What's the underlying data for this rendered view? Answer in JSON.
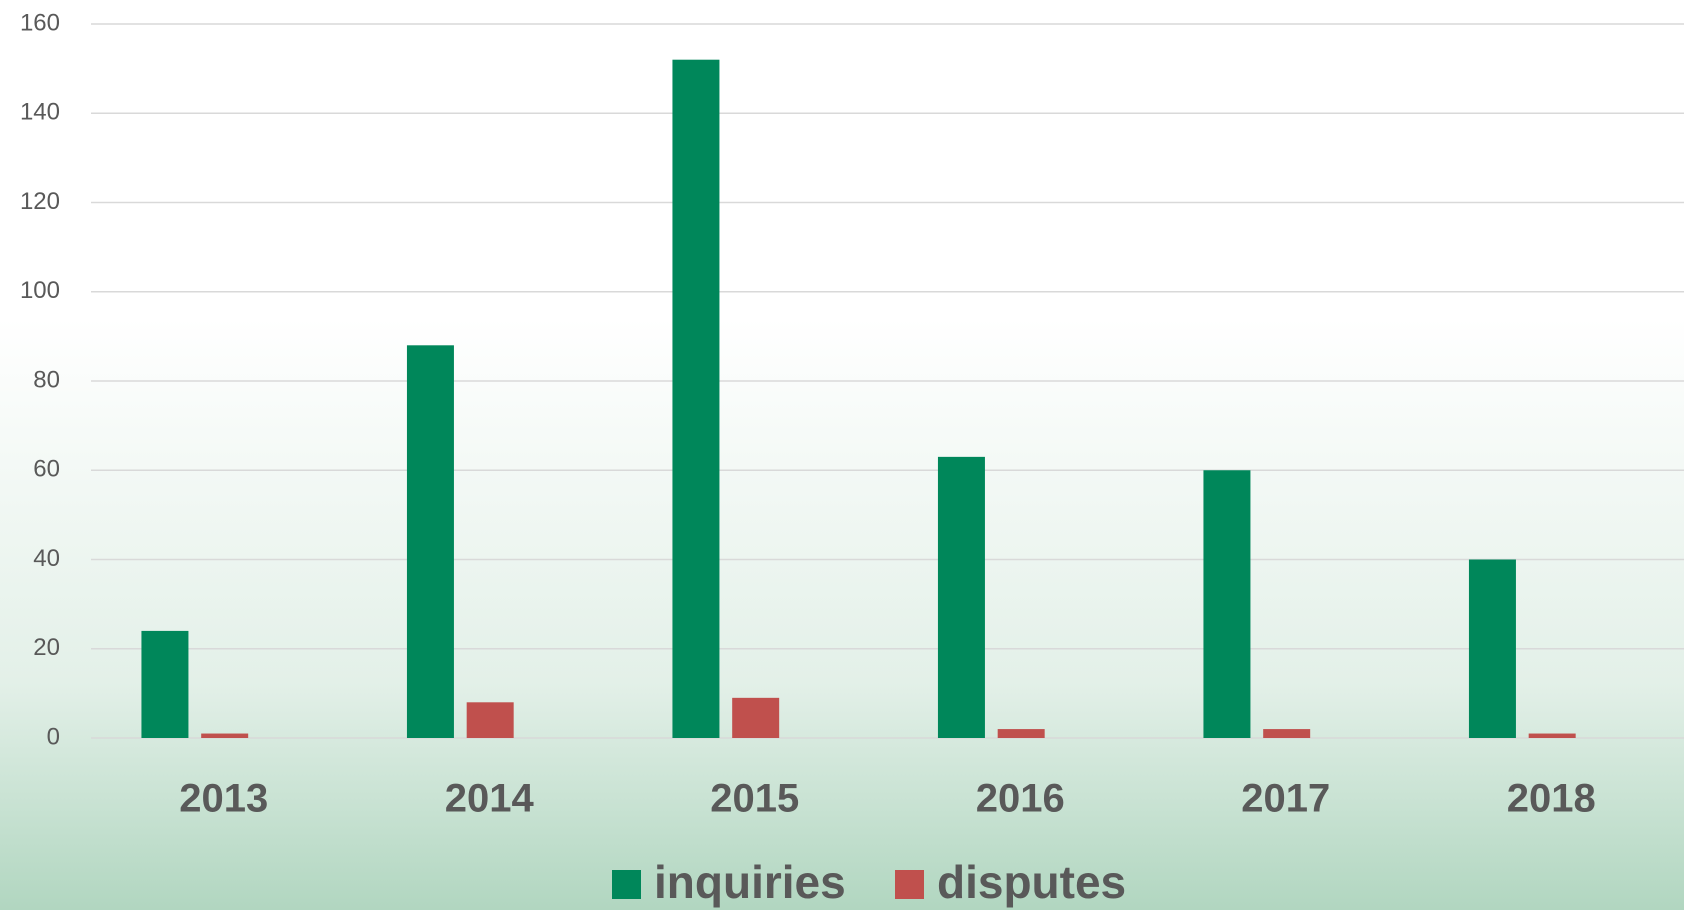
{
  "chart_data": {
    "type": "bar",
    "categories": [
      "2013",
      "2014",
      "2015",
      "2016",
      "2017",
      "2018"
    ],
    "series": [
      {
        "name": "inquiries",
        "color": "#00875a",
        "values": [
          24,
          88,
          152,
          63,
          60,
          40
        ]
      },
      {
        "name": "disputes",
        "color": "#c0504d",
        "values": [
          1,
          8,
          9,
          2,
          2,
          1
        ]
      }
    ],
    "ylim": [
      0,
      160
    ],
    "yticks": [
      0,
      20,
      40,
      60,
      80,
      100,
      120,
      140,
      160
    ],
    "grid": true,
    "legend": "bottom"
  }
}
